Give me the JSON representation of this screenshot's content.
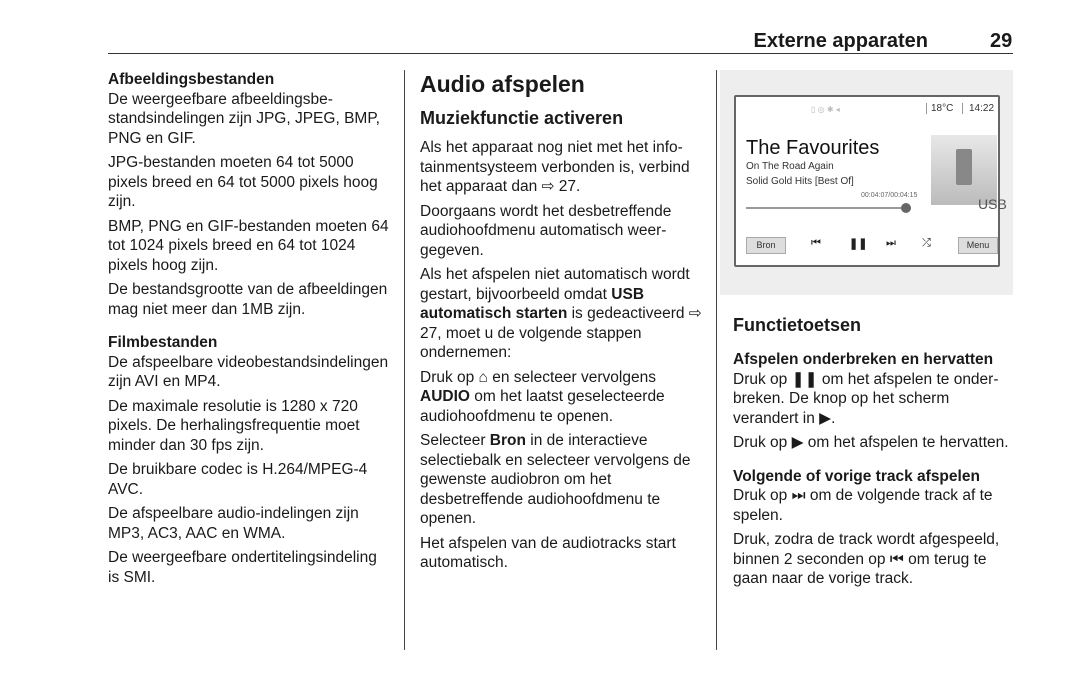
{
  "header": {
    "title": "Externe apparaten",
    "page_number": "29"
  },
  "left": {
    "images_heading": "Afbeeldingsbestanden",
    "images_p1": "De weergeefbare afbeeldingsbe­standsindelingen zijn JPG, JPEG, BMP, PNG en GIF.",
    "images_p2": "JPG-bestanden moeten 64 tot 5000 pixels breed en 64 tot 5000 pixels hoog zijn.",
    "images_p3": "BMP, PNG en GIF-bestanden moeten 64 tot 1024 pixels breed en 64 tot 1024 pixels hoog zijn.",
    "images_p4": "De bestandsgrootte van de afbeeldin­gen mag niet meer dan 1MB zijn.",
    "films_heading": "Filmbestanden",
    "films_p1": "De afspeelbare videobestandsinde­lingen zijn AVI en MP4.",
    "films_p2": "De maximale resolutie is 1280 x 720 pixels. De herhalingsfrequentie moet minder dan 30 fps zijn.",
    "films_p3": "De bruikbare codec is H.264/MPEG-4 AVC.",
    "films_p4": "De afspeelbare audio-indelingen zijn MP3, AC3, AAC en WMA.",
    "films_p5": "De weergeefbare ondertitelingsinde­ling is SMI."
  },
  "middle": {
    "title": "Audio afspelen",
    "subtitle": "Muziekfunctie activeren",
    "p1": "Als het apparaat nog niet met het info­tainmentsysteem verbonden is, verbind het apparaat dan ⇨ 27.",
    "p2": "Doorgaans wordt het desbetreffende audiohoofdmenu automatisch weer­gegeven.",
    "p3_a": "Als het afspelen niet automatisch wordt gestart, bijvoorbeeld omdat ",
    "p3_bold": "USB automatisch starten",
    "p3_b": " is gedeacti­veerd ⇨ 27, moet u de volgende stap­pen ondernemen:",
    "p4_a": "Druk op ⌂ en selecteer vervolgens ",
    "p4_bold": "AUDIO",
    "p4_b": " om het laatst geselecteerde audiohoofdmenu te openen.",
    "p5_a": "Selecteer ",
    "p5_bold": "Bron",
    "p5_b": " in de interactieve selectiebalk en selecteer vervolgens de gewenste audiobron om het desbetreffende audiohoofdmenu te openen.",
    "p6": "Het afspelen van de audiotracks start automatisch."
  },
  "screen": {
    "temperature": "18°C",
    "time": "14:22",
    "album": "The Favourites",
    "track": "On The Road Again",
    "collection": "Solid Gold Hits [Best Of]",
    "elapsed": "00:04:07/00:04:15",
    "progress": 0.97,
    "source": "USB",
    "source_button": "Bron",
    "menu_button": "Menu",
    "controls": [
      "previous-icon",
      "pause-icon",
      "next-icon",
      "shuffle-icon"
    ]
  },
  "right": {
    "title": "Functietoetsen",
    "h1": "Afspelen onderbreken en hervatten",
    "p1": "Druk op ❚❚ om het afspelen te onder­breken. De knop op het scherm verandert in ▶.",
    "p2": "Druk op ▶ om het afspelen te hervat­ten.",
    "h2": "Volgende of vorige track afspelen",
    "p3": "Druk op ⏭ om de volgende track af te spelen.",
    "p4": "Druk, zodra de track wordt afge­speeld, binnen 2 seconden op ⏮ om terug te gaan naar de vorige track."
  }
}
